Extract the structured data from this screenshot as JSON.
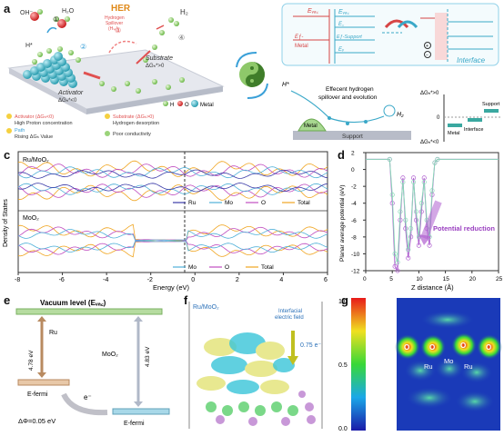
{
  "panel_letters": {
    "a": "a",
    "b": "b",
    "c": "c",
    "d": "d",
    "e": "e",
    "f": "f",
    "g": "g"
  },
  "panel_a": {
    "oh": "OH⁻",
    "h2o": "H₂O",
    "h2": "H₂",
    "hstar": "H*",
    "step1": "①",
    "step2": "②",
    "step3": "③",
    "step4": "④",
    "her_title": "HER",
    "her_sub1": "Hydrogen",
    "her_sub2": "Spillover",
    "her_sub3": "(Hₛₒ)",
    "activator": "Activator",
    "activator_dg": "ΔGₕ*<0",
    "substrate": "Substrate",
    "substrate_dg": "ΔGₕ*>0",
    "legend_h": "H",
    "legend_o": "O",
    "legend_metal": "Metal",
    "note1_title": "Activator (ΔGₕ<0)",
    "note1_line": "High Proton concentration",
    "note2_title": "Path",
    "note2_line": "Rising ΔGₕ Value",
    "note3_title": "Substrate (ΔGₕ>0)",
    "note3_line": "Hydrogen desorption",
    "note4": "Poor conductivity",
    "colors": {
      "h": "#9bd37a",
      "o": "#e23b3b",
      "metal": "#3fb6c9"
    }
  },
  "panel_b": {
    "evac_metal": "Eᵥₐ꜀",
    "evac_support": "Eᵥₐ꜀",
    "ef_metal": "Eƒ-",
    "metal": "Metal",
    "ec": "E꜀",
    "ef_support": "Eƒ-Support",
    "ev": "Eᵥ",
    "interface": "Interface",
    "plus": "+",
    "minus": "−",
    "hstar": "H*",
    "spill_line1": "Effecent hydrogen",
    "spill_line2": "spillover and evolution",
    "h2": "H₂",
    "metal_label": "Metal",
    "support_label": "Support",
    "dg_top": "ΔGₕ*>0",
    "dg_bottom": "ΔGₕ*<0",
    "zero": "0",
    "bar_metal": "Metal",
    "bar_interface": "Interface",
    "bar_support": "Support"
  },
  "chart_data": [
    {
      "type": "line",
      "title": "",
      "xlabel": "Energy (eV)",
      "ylabel": "Density of States",
      "xlim": [
        -8,
        6
      ],
      "xticks": [
        "-8",
        "-6",
        "-4",
        "-2",
        "0",
        "2",
        "4",
        "6"
      ],
      "subpanels": [
        {
          "label": "Ru/MoO₂",
          "legend": [
            "Ru",
            "Mo",
            "O",
            "Total"
          ]
        },
        {
          "label": "MoO₂",
          "legend": [
            "Mo",
            "O",
            "Total"
          ]
        }
      ],
      "series": [
        {
          "name": "Ru",
          "color": "#3a3aa8"
        },
        {
          "name": "Mo",
          "color": "#4fb0d8"
        },
        {
          "name": "O",
          "color": "#c04ec0"
        },
        {
          "name": "Total",
          "color": "#f0a520"
        }
      ]
    },
    {
      "type": "line",
      "title": "",
      "xlabel": "Z distance (Å)",
      "ylabel": "Planar average potential (eV)",
      "xlim": [
        0,
        25
      ],
      "ylim": [
        -12,
        2
      ],
      "xticks": [
        "0",
        "5",
        "10",
        "15",
        "20",
        "25"
      ],
      "yticks": [
        "2",
        "0",
        "-2",
        "-4",
        "-6",
        "-8",
        "-10",
        "-12"
      ],
      "annotation": "Potential reduction",
      "series": [
        {
          "name": "",
          "color": "#b060d0",
          "x": [
            0,
            4.5,
            5,
            5.5,
            6,
            6.5,
            7,
            7.5,
            8,
            8.5,
            9,
            9.5,
            10,
            10.5,
            11,
            11.5,
            12,
            12.5,
            13,
            13.5,
            25
          ],
          "y": [
            1.2,
            1.2,
            -4,
            -11.5,
            -12,
            -6,
            -1,
            -7,
            -10.5,
            -8,
            -1,
            -6,
            -9,
            -5,
            -1,
            -7,
            -9,
            -3,
            0.8,
            1.2,
            1.2
          ]
        },
        {
          "name": "",
          "color": "#8ad8b8",
          "x": [
            0,
            4.5,
            5,
            5.5,
            6,
            6.5,
            7,
            7.5,
            8,
            8.5,
            9,
            9.5,
            10,
            10.5,
            11,
            11.5,
            12,
            12.5,
            13,
            13.5,
            25
          ],
          "y": [
            1.2,
            1.2,
            -3,
            -10,
            -11,
            -5,
            -1.5,
            -6,
            -9.5,
            -7,
            -1.5,
            -5,
            -8,
            -4,
            -1.5,
            -6,
            -8,
            -2.5,
            0.8,
            1.2,
            1.2
          ]
        }
      ]
    }
  ],
  "panel_e": {
    "vacuum": "Vacuum level (Eᵥₐ꜀)",
    "ru": "Ru",
    "ru_value": "4.78 eV",
    "moo2": "MoO₂",
    "moo2_value": "4.83 eV",
    "efermi_left": "E-fermi",
    "efermi_right": "E-fermi",
    "electron": "e⁻",
    "delta_phi": "ΔΦ=0.05 eV"
  },
  "panel_f": {
    "label": "Ru/MoO₂",
    "field1": "Interfacial",
    "field2": "electric field",
    "charge": "0.75 e⁻"
  },
  "panel_g": {
    "scale_top": "1.0",
    "scale_mid": "0.5",
    "scale_bottom": "0.0",
    "o_labels": [
      "O",
      "O",
      "O",
      "O"
    ],
    "ru_left": "Ru",
    "mo": "Mo",
    "ru_right": "Ru"
  }
}
